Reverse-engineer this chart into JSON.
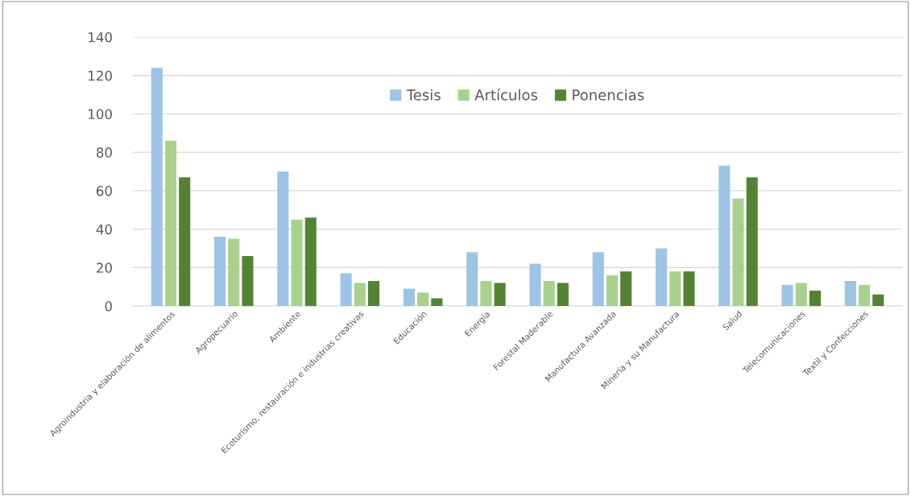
{
  "chart_data": {
    "type": "bar",
    "categories": [
      "Agroindustria y elaboración de alimentos",
      "Agropecuario",
      "Ambiente",
      "Ecoturismo, restauración e industrias creativas",
      "Educación",
      "Energía",
      "Forestal Maderable",
      "Manufactura Avanzada",
      "Minería y su Manufactura",
      "Salud",
      "Telecomunicaciones",
      "Textil y Confecciones"
    ],
    "series": [
      {
        "name": "Tesis",
        "color": "#9dc3e6",
        "values": [
          124,
          36,
          70,
          17,
          9,
          28,
          22,
          28,
          30,
          73,
          11,
          13
        ]
      },
      {
        "name": "Artículos",
        "color": "#a9d18e",
        "values": [
          86,
          35,
          45,
          12,
          7,
          13,
          13,
          16,
          18,
          56,
          12,
          11
        ]
      },
      {
        "name": "Ponencias",
        "color": "#548235",
        "values": [
          67,
          26,
          46,
          13,
          4,
          12,
          12,
          18,
          18,
          67,
          8,
          6
        ]
      }
    ],
    "ylim": [
      0,
      140
    ],
    "yticks": [
      0,
      20,
      40,
      60,
      80,
      100,
      120,
      140
    ],
    "grid": "y",
    "legend": "top"
  }
}
